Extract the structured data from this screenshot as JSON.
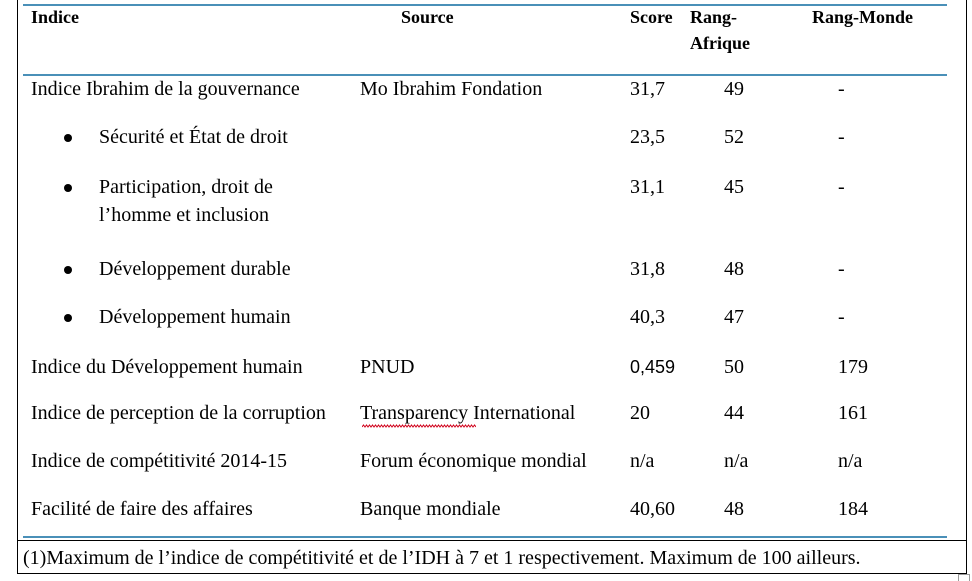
{
  "colors": {
    "rule": "#4a90b8",
    "text": "#000000",
    "spellcheck": "#d0021b"
  },
  "headers": {
    "indice": "Indice",
    "source": "Source",
    "score": "Score",
    "rang_afrique_1": "Rang-",
    "rang_afrique_2": "Afrique",
    "rang_monde": "Rang-Monde"
  },
  "rows": [
    {
      "indice": "Indice Ibrahim de la gouvernance",
      "source": "Mo Ibrahim Fondation",
      "score": "31,7",
      "afrique": "49",
      "monde": "-"
    },
    {
      "indice": "Sécurité et État de droit",
      "score": "23,5",
      "afrique": "52",
      "monde": "-"
    },
    {
      "indice_1": "Participation, droit de",
      "indice_2": "l’homme et inclusion",
      "score": "31,1",
      "afrique": "45",
      "monde": "-"
    },
    {
      "indice": "Développement durable",
      "score": "31,8",
      "afrique": "48",
      "monde": "-"
    },
    {
      "indice": "Développement humain",
      "score": "40,3",
      "afrique": "47",
      "monde": "-"
    },
    {
      "indice": "Indice du Développement humain",
      "source": "PNUD",
      "score": "0,459",
      "afrique": "50",
      "monde": "179"
    },
    {
      "indice": "Indice de perception de la corruption",
      "source": "Transparency International",
      "score": "20",
      "afrique": "44",
      "monde": "161"
    },
    {
      "indice": "Indice de compétitivité 2014-15",
      "source": "Forum économique mondial",
      "score": "n/a",
      "afrique": "n/a",
      "monde": "n/a"
    },
    {
      "indice": "Facilité de faire des affaires",
      "source": "Banque mondiale",
      "score": "40,60",
      "afrique": "48",
      "monde": "184"
    }
  ],
  "footnote": "(1)Maximum de l’indice de compétitivité et de l’IDH à 7 et 1 respectivement. Maximum de 100 ailleurs."
}
